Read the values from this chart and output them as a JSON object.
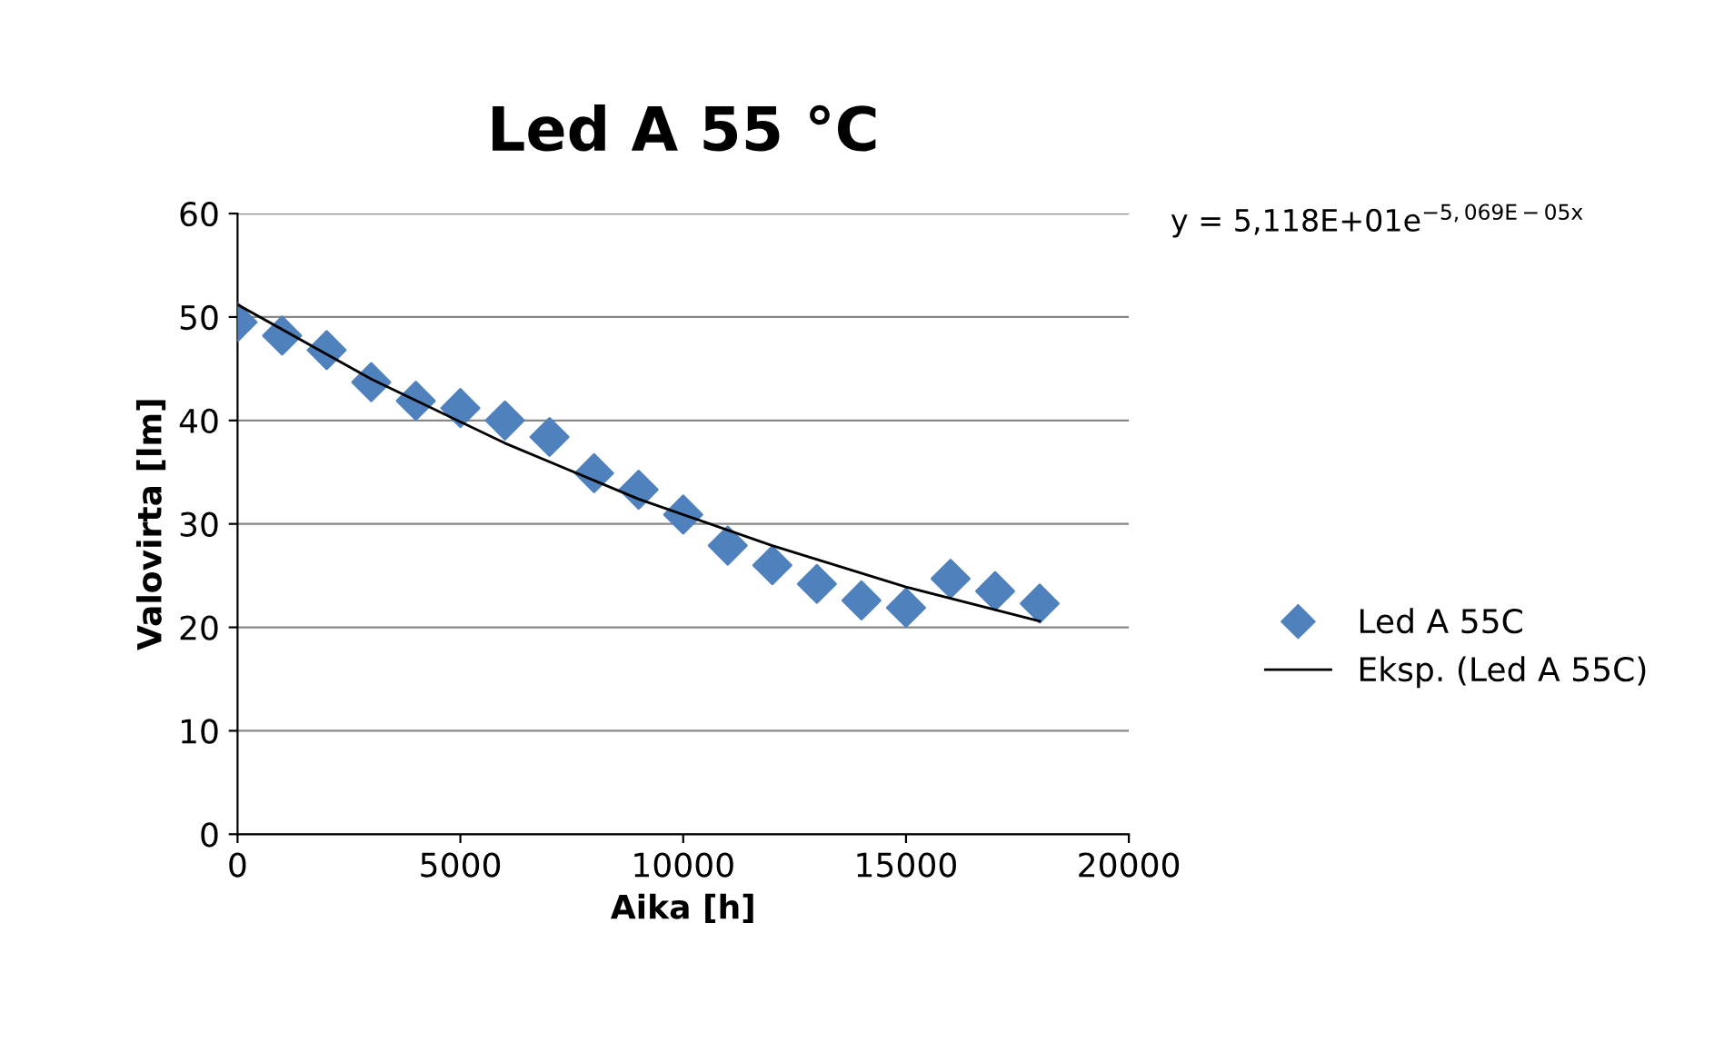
{
  "chart_data": {
    "type": "scatter",
    "title": "Led A 55 °C",
    "xlabel": "Aika [h]",
    "ylabel": "Valovirta [lm]",
    "xlim": [
      0,
      20000
    ],
    "xticks": [
      0,
      5000,
      10000,
      15000,
      20000
    ],
    "ylim": [
      0,
      60
    ],
    "yticks": [
      0,
      10,
      20,
      30,
      40,
      50,
      60
    ],
    "grid": "y",
    "legend": "right",
    "annotations": [
      "y = 5,118E+01e$^{−5,069E−05x}$"
    ],
    "series": [
      {
        "name": "Led A 55C",
        "marker": "diamond",
        "color": "#4f81bd",
        "x": [
          0,
          1000,
          2000,
          3000,
          4000,
          5000,
          6000,
          7000,
          8000,
          9000,
          10000,
          11000,
          12000,
          13000,
          14000,
          15000,
          16000,
          17000,
          18000
        ],
        "values": [
          49.5,
          48.2,
          46.8,
          43.7,
          41.9,
          41.2,
          40.0,
          38.4,
          34.9,
          33.3,
          30.9,
          27.9,
          26.0,
          24.2,
          22.6,
          21.9,
          24.7,
          23.5,
          22.3
        ]
      },
      {
        "name": "Eksp. (Led A 55C)",
        "type": "line",
        "color": "#000000",
        "line_style": "solid",
        "x": [
          0,
          3000,
          6000,
          9000,
          12000,
          15000,
          18000
        ],
        "values": [
          51.2,
          44.0,
          37.8,
          32.4,
          27.9,
          23.9,
          20.6
        ]
      }
    ]
  }
}
